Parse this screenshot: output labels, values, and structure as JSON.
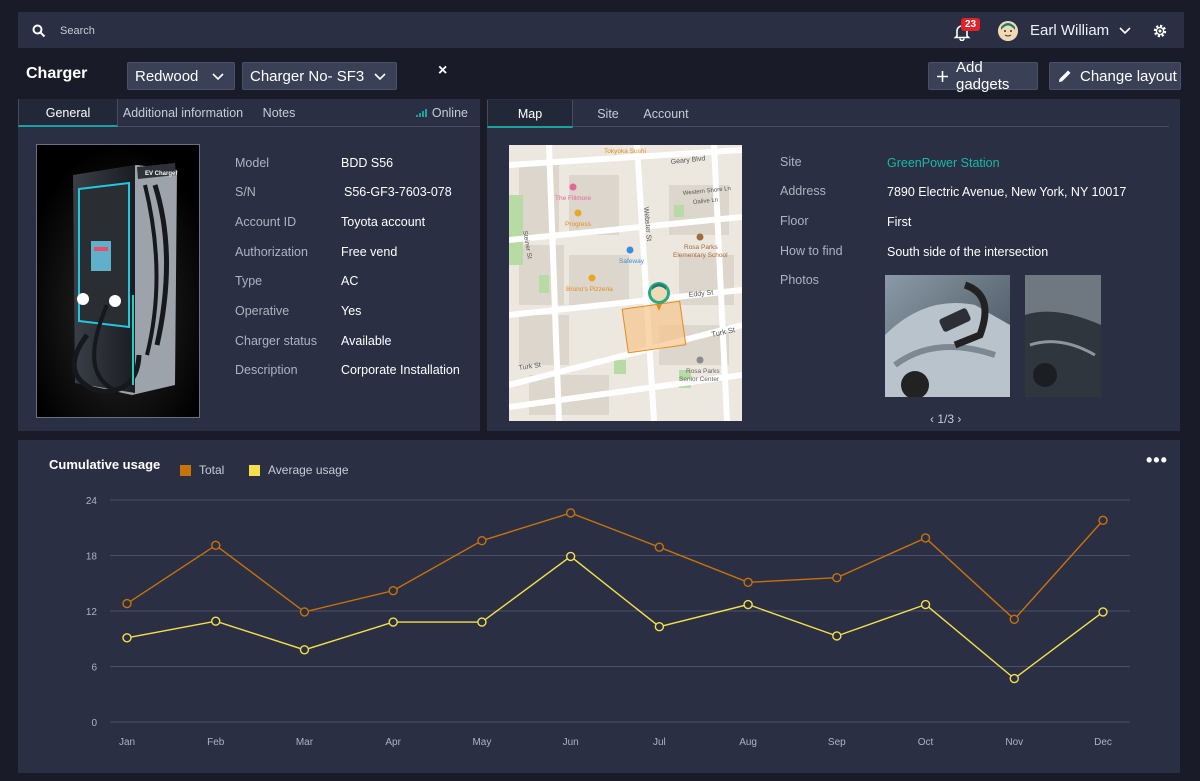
{
  "topbar": {
    "search_label": "Search",
    "notification_count": "23",
    "user_name": "Earl William"
  },
  "header": {
    "title": "Charger",
    "location_select": "Redwood",
    "charger_select": "Charger No- SF3",
    "close": "×",
    "add_gadgets": "Add gadgets",
    "change_layout": "Change layout"
  },
  "left_panel": {
    "tabs": [
      "General",
      "Additional information",
      "Notes"
    ],
    "status": "Online",
    "fields": [
      {
        "label": "Model",
        "value": "BDD S56"
      },
      {
        "label": "S/N",
        "value": "S56-GF3-7603-078"
      },
      {
        "label": "Account ID",
        "value": "Toyota account"
      },
      {
        "label": "Authorization",
        "value": "Free vend"
      },
      {
        "label": "Type",
        "value": "AC"
      },
      {
        "label": "Operative",
        "value": "Yes"
      },
      {
        "label": "Charger status",
        "value": "Available"
      },
      {
        "label": "Description",
        "value": "Corporate Installation"
      }
    ],
    "device_brand": "EV Charger"
  },
  "right_panel": {
    "tabs": [
      "Map",
      "Site",
      "Account"
    ],
    "fields": [
      {
        "label": "Site",
        "value": "GreenPower Station"
      },
      {
        "label": "Address",
        "value": "7890 Electric Avenue, New York, NY 10017"
      },
      {
        "label": "Floor",
        "value": "First"
      },
      {
        "label": "How to find",
        "value": "South side of the intersection"
      },
      {
        "label": "Photos",
        "value": ""
      }
    ],
    "pager": "1/3",
    "map_labels": {
      "geary": "Geary Blvd",
      "fillmore": "The Fillmore",
      "progress": "Progress",
      "webster": "Webster St",
      "rosa_parks_school": "Rosa Parks",
      "rosa_parks_school_2": "Elementary School",
      "safeway": "Safeway",
      "brunos": "Bruno's Pizzeria",
      "eddy": "Eddy St",
      "turk": "Turk St",
      "turk_left": "Turk St",
      "senior": "Rosa Parks",
      "senior_2": "Senior Center",
      "western_shore": "Western Shore Ln",
      "oalive": "Oalive Ln",
      "steiner": "Steiner St",
      "tokyo": "Tokyoka Sushi"
    }
  },
  "colors": {
    "accent": "#19a3a0",
    "link": "#19b7a8",
    "total": "#c8720a",
    "average": "#f4e04d"
  },
  "chart_data": {
    "type": "line",
    "title": "Cumulative usage",
    "categories": [
      "Jan",
      "Feb",
      "Mar",
      "Apr",
      "May",
      "Jun",
      "Jul",
      "Aug",
      "Sep",
      "Oct",
      "Nov",
      "Dec"
    ],
    "yticks": [
      "0",
      "6",
      "12",
      "18",
      "24"
    ],
    "ylim": [
      0,
      24
    ],
    "grid": true,
    "legend_position": "top-left",
    "series": [
      {
        "name": "Total",
        "color": "#c8720a",
        "values": [
          12.8,
          19.1,
          11.9,
          14.2,
          19.6,
          22.6,
          18.9,
          15.1,
          15.6,
          19.9,
          11.1,
          21.8
        ]
      },
      {
        "name": "Average usage",
        "color": "#f4e04d",
        "values": [
          9.1,
          10.9,
          7.8,
          10.8,
          10.8,
          17.9,
          10.3,
          12.7,
          9.3,
          12.7,
          4.7,
          11.9
        ]
      }
    ]
  }
}
